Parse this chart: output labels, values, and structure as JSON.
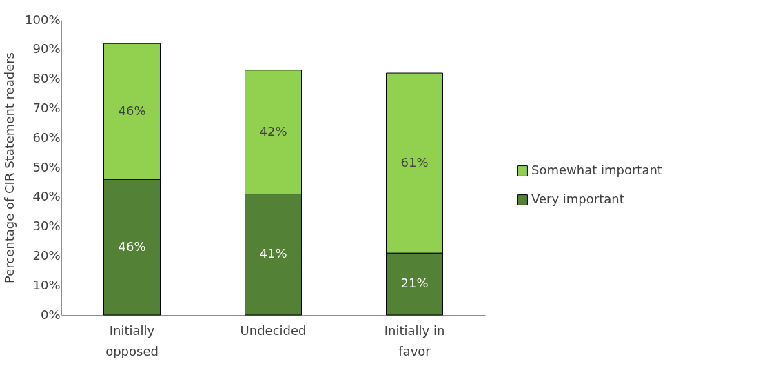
{
  "chart_data": {
    "type": "bar",
    "stacked": true,
    "ylabel": "Percentage of CIR Statement readers",
    "categories": [
      "Initially opposed",
      "Undecided",
      "Initially in favor"
    ],
    "series": [
      {
        "name": "Very important",
        "color": "#538135",
        "values": [
          46,
          41,
          21
        ],
        "value_labels": [
          "46%",
          "41%",
          "21%"
        ]
      },
      {
        "name": "Somewhat important",
        "color": "#92d050",
        "values": [
          46,
          42,
          61
        ],
        "value_labels": [
          "46%",
          "42%",
          "61%"
        ]
      }
    ],
    "ylim": [
      0,
      100
    ],
    "yticks": [
      {
        "value": 0,
        "label": "0%"
      },
      {
        "value": 10,
        "label": "10%"
      },
      {
        "value": 20,
        "label": "20%"
      },
      {
        "value": 30,
        "label": "30%"
      },
      {
        "value": 40,
        "label": "40%"
      },
      {
        "value": 50,
        "label": "50%"
      },
      {
        "value": 60,
        "label": "60%"
      },
      {
        "value": 70,
        "label": "70%"
      },
      {
        "value": 80,
        "label": "80%"
      },
      {
        "value": 90,
        "label": "90%"
      },
      {
        "value": 100,
        "label": "100%"
      }
    ],
    "grid": false,
    "legend": "right"
  }
}
